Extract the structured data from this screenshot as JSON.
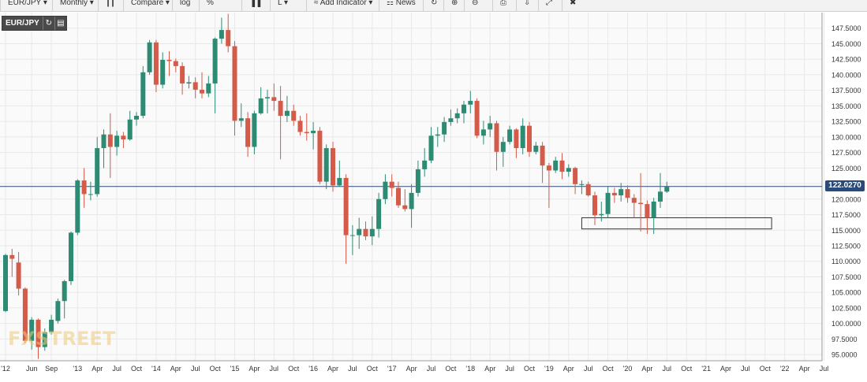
{
  "toolbar": {
    "items": [
      {
        "label": "EUR/JPY ▾",
        "icon": ""
      },
      {
        "label": "Monthly ▾",
        "icon": ""
      },
      {
        "label": "",
        "icon": "candlestick-icon"
      },
      {
        "label": "Compare ▾",
        "icon": ""
      },
      {
        "label": "log",
        "icon": ""
      },
      {
        "label": "%",
        "icon": ""
      },
      {
        "label": "",
        "icon": "bars-icon"
      },
      {
        "label": "L ▾",
        "icon": ""
      },
      {
        "label": "Add Indicator ▾",
        "icon": "indicator-icon"
      },
      {
        "label": "News",
        "icon": "news-icon"
      },
      {
        "label": "",
        "icon": "refresh-icon"
      },
      {
        "label": "",
        "icon": "zoom-in-icon"
      },
      {
        "label": "",
        "icon": "zoom-out-icon"
      },
      {
        "label": "",
        "icon": "print-icon"
      },
      {
        "label": "",
        "icon": "download-icon"
      },
      {
        "label": "",
        "icon": "fullscreen-icon"
      },
      {
        "label": "",
        "icon": "mute-icon"
      }
    ]
  },
  "symbol": {
    "label": "EUR/JPY",
    "buttons": [
      "reload-icon",
      "chart-type-icon"
    ]
  },
  "watermark": "FXSTREET",
  "colors": {
    "up": "#2e8b73",
    "down": "#d45a4a",
    "wick": "#555555",
    "priceLine": "#2a4a77",
    "grid": "#e8e8e8",
    "rect": "#333333"
  },
  "chart_data": {
    "type": "candlestick",
    "symbol": "EUR/JPY",
    "interval": "Monthly",
    "last_price": "122.0270",
    "ylim": [
      94,
      150
    ],
    "y_ticks": [
      "95.0000",
      "97.5000",
      "100.0000",
      "102.5000",
      "105.0000",
      "107.5000",
      "110.0000",
      "112.5000",
      "115.0000",
      "117.5000",
      "120.0000",
      "122.5000",
      "125.0000",
      "127.5000",
      "130.0000",
      "132.5000",
      "135.0000",
      "137.5000",
      "140.0000",
      "142.5000",
      "145.0000",
      "147.5000"
    ],
    "x_ticks": [
      "'12",
      "Jun",
      "Sep",
      "'13",
      "Apr",
      "Jul",
      "Oct",
      "'14",
      "Apr",
      "Jul",
      "Oct",
      "'15",
      "Apr",
      "Jul",
      "Oct",
      "'16",
      "Apr",
      "Jul",
      "Oct",
      "'17",
      "Apr",
      "Jul",
      "Oct",
      "'18",
      "Apr",
      "Jul",
      "Oct",
      "'19",
      "Apr",
      "Jul",
      "Oct",
      "'20",
      "Apr",
      "Jul",
      "Oct",
      "'21",
      "Apr",
      "Jul",
      "Oct",
      "'22",
      "Apr",
      "Jul"
    ],
    "grid": true,
    "annotation_box": {
      "from": "2019-06",
      "to": "2021-11",
      "low": 115.2,
      "high": 117.0
    },
    "candles": [
      [
        "2012-02",
        102.0,
        111.0,
        101.8,
        111.2
      ],
      [
        "2012-03",
        111.0,
        110.4,
        107.5,
        112.0
      ],
      [
        "2012-04",
        109.8,
        105.6,
        104.5,
        111.5
      ],
      [
        "2012-05",
        105.6,
        97.2,
        96.8,
        105.8
      ],
      [
        "2012-06",
        97.2,
        100.6,
        95.8,
        101.0
      ],
      [
        "2012-07",
        100.6,
        96.2,
        94.3,
        100.8
      ],
      [
        "2012-08",
        96.2,
        98.6,
        95.6,
        99.2
      ],
      [
        "2012-09",
        98.6,
        100.6,
        98.2,
        101.4
      ],
      [
        "2012-10",
        100.4,
        103.6,
        100.0,
        104.0
      ],
      [
        "2012-11",
        103.6,
        106.8,
        100.8,
        107.0
      ],
      [
        "2012-12",
        106.8,
        114.6,
        106.2,
        114.8
      ],
      [
        "2013-01",
        114.6,
        123.0,
        114.2,
        123.2
      ],
      [
        "2013-02",
        123.0,
        120.8,
        118.6,
        125.0
      ],
      [
        "2013-03",
        120.8,
        120.8,
        119.8,
        122.8
      ],
      [
        "2013-04",
        120.8,
        128.2,
        120.4,
        130.0
      ],
      [
        "2013-05",
        128.2,
        130.4,
        125.0,
        131.2
      ],
      [
        "2013-06",
        130.4,
        128.4,
        123.4,
        133.8
      ],
      [
        "2013-07",
        128.4,
        130.2,
        127.0,
        131.0
      ],
      [
        "2013-08",
        130.2,
        129.6,
        128.2,
        130.8
      ],
      [
        "2013-09",
        129.6,
        132.8,
        129.4,
        134.2
      ],
      [
        "2013-10",
        132.8,
        133.4,
        131.8,
        134.0
      ],
      [
        "2013-11",
        133.4,
        140.4,
        133.0,
        141.4
      ],
      [
        "2013-12",
        140.4,
        145.2,
        140.0,
        145.6
      ],
      [
        "2014-01",
        145.2,
        138.4,
        137.2,
        145.6
      ],
      [
        "2014-02",
        138.4,
        142.4,
        137.8,
        143.6
      ],
      [
        "2014-03",
        142.4,
        142.2,
        139.8,
        143.8
      ],
      [
        "2014-04",
        142.2,
        141.4,
        140.4,
        142.6
      ],
      [
        "2014-05",
        141.4,
        138.6,
        136.8,
        142.0
      ],
      [
        "2014-06",
        138.6,
        138.8,
        137.8,
        139.8
      ],
      [
        "2014-07",
        138.8,
        137.6,
        136.2,
        139.6
      ],
      [
        "2014-08",
        137.6,
        137.0,
        136.2,
        140.4
      ],
      [
        "2014-09",
        137.0,
        138.6,
        136.4,
        139.8
      ],
      [
        "2014-10",
        138.6,
        145.8,
        133.8,
        146.0
      ],
      [
        "2014-11",
        145.8,
        147.2,
        145.0,
        149.2
      ],
      [
        "2014-12",
        147.2,
        144.6,
        143.6,
        149.8
      ],
      [
        "2015-01",
        144.6,
        132.6,
        130.2,
        145.4
      ],
      [
        "2015-02",
        132.6,
        133.0,
        131.6,
        135.4
      ],
      [
        "2015-03",
        133.0,
        128.4,
        126.8,
        134.0
      ],
      [
        "2015-04",
        128.4,
        133.8,
        127.2,
        134.2
      ],
      [
        "2015-05",
        133.8,
        136.2,
        133.6,
        138.0
      ],
      [
        "2015-06",
        136.2,
        136.4,
        133.8,
        137.6
      ],
      [
        "2015-07",
        136.4,
        135.8,
        134.2,
        138.6
      ],
      [
        "2015-08",
        135.8,
        133.4,
        126.4,
        138.2
      ],
      [
        "2015-09",
        133.4,
        134.2,
        132.4,
        136.6
      ],
      [
        "2015-10",
        134.2,
        132.6,
        131.8,
        135.2
      ],
      [
        "2015-11",
        132.6,
        130.8,
        130.2,
        133.4
      ],
      [
        "2015-12",
        130.8,
        130.6,
        129.4,
        133.8
      ],
      [
        "2016-01",
        130.6,
        131.0,
        128.0,
        132.4
      ],
      [
        "2016-02",
        131.0,
        122.8,
        122.4,
        131.6
      ],
      [
        "2016-03",
        122.8,
        128.2,
        121.6,
        128.8
      ],
      [
        "2016-04",
        128.2,
        122.2,
        121.2,
        129.2
      ],
      [
        "2016-05",
        122.2,
        123.4,
        122.0,
        126.2
      ],
      [
        "2016-06",
        123.4,
        114.2,
        109.6,
        124.0
      ],
      [
        "2016-07",
        114.2,
        114.2,
        111.0,
        115.8
      ],
      [
        "2016-08",
        114.2,
        115.2,
        112.0,
        117.0
      ],
      [
        "2016-09",
        115.2,
        114.0,
        113.4,
        116.4
      ],
      [
        "2016-10",
        114.0,
        115.2,
        112.6,
        117.2
      ],
      [
        "2016-11",
        115.2,
        120.0,
        113.8,
        121.0
      ],
      [
        "2016-12",
        120.0,
        122.8,
        119.2,
        124.0
      ],
      [
        "2017-01",
        122.8,
        121.8,
        120.4,
        124.0
      ],
      [
        "2017-02",
        121.8,
        119.0,
        118.6,
        122.8
      ],
      [
        "2017-03",
        119.0,
        118.4,
        118.0,
        121.6
      ],
      [
        "2017-04",
        118.4,
        121.0,
        115.4,
        122.4
      ],
      [
        "2017-05",
        121.0,
        124.8,
        120.4,
        126.2
      ],
      [
        "2017-06",
        124.8,
        126.2,
        123.6,
        128.2
      ],
      [
        "2017-07",
        126.2,
        130.2,
        125.8,
        131.6
      ],
      [
        "2017-08",
        130.2,
        130.4,
        128.4,
        131.6
      ],
      [
        "2017-09",
        130.4,
        132.4,
        129.2,
        133.2
      ],
      [
        "2017-10",
        132.4,
        133.0,
        131.8,
        134.4
      ],
      [
        "2017-11",
        133.0,
        133.8,
        132.2,
        134.6
      ],
      [
        "2017-12",
        133.8,
        135.2,
        132.2,
        135.8
      ],
      [
        "2018-01",
        135.2,
        135.8,
        133.8,
        137.4
      ],
      [
        "2018-02",
        135.8,
        130.2,
        129.8,
        136.2
      ],
      [
        "2018-03",
        130.2,
        131.2,
        128.8,
        132.6
      ],
      [
        "2018-04",
        131.2,
        132.2,
        130.0,
        133.4
      ],
      [
        "2018-05",
        132.2,
        127.6,
        124.6,
        132.6
      ],
      [
        "2018-06",
        127.6,
        129.2,
        125.2,
        130.0
      ],
      [
        "2018-07",
        129.2,
        131.2,
        128.8,
        131.8
      ],
      [
        "2018-08",
        131.2,
        128.2,
        126.6,
        131.4
      ],
      [
        "2018-09",
        128.2,
        131.8,
        127.2,
        133.0
      ],
      [
        "2018-10",
        131.8,
        127.6,
        126.8,
        132.4
      ],
      [
        "2018-11",
        127.6,
        128.6,
        127.2,
        129.2
      ],
      [
        "2018-12",
        128.6,
        125.4,
        122.6,
        129.2
      ],
      [
        "2019-01",
        125.4,
        124.6,
        118.6,
        125.8
      ],
      [
        "2019-02",
        124.6,
        126.2,
        124.2,
        126.8
      ],
      [
        "2019-03",
        126.2,
        124.4,
        123.2,
        127.4
      ],
      [
        "2019-04",
        124.4,
        125.0,
        123.6,
        125.6
      ],
      [
        "2019-05",
        125.0,
        122.4,
        120.8,
        125.2
      ],
      [
        "2019-06",
        122.4,
        122.4,
        120.8,
        123.0
      ],
      [
        "2019-07",
        122.4,
        120.6,
        120.4,
        122.8
      ],
      [
        "2019-08",
        120.6,
        117.4,
        115.8,
        121.2
      ],
      [
        "2019-09",
        117.4,
        117.6,
        116.4,
        119.6
      ],
      [
        "2019-10",
        117.6,
        121.0,
        117.0,
        122.0
      ],
      [
        "2019-11",
        121.0,
        120.6,
        119.4,
        121.8
      ],
      [
        "2019-12",
        120.6,
        121.6,
        119.6,
        122.6
      ],
      [
        "2020-01",
        121.6,
        120.2,
        119.4,
        122.2
      ],
      [
        "2020-02",
        120.2,
        119.4,
        117.0,
        120.8
      ],
      [
        "2020-03",
        119.4,
        119.2,
        114.8,
        124.2
      ],
      [
        "2020-04",
        119.2,
        117.0,
        114.4,
        119.8
      ],
      [
        "2020-05",
        117.0,
        119.6,
        114.4,
        120.2
      ],
      [
        "2020-06",
        119.6,
        121.2,
        118.6,
        124.2
      ],
      [
        "2020-07",
        121.2,
        122.0,
        121.0,
        122.8
      ]
    ]
  }
}
